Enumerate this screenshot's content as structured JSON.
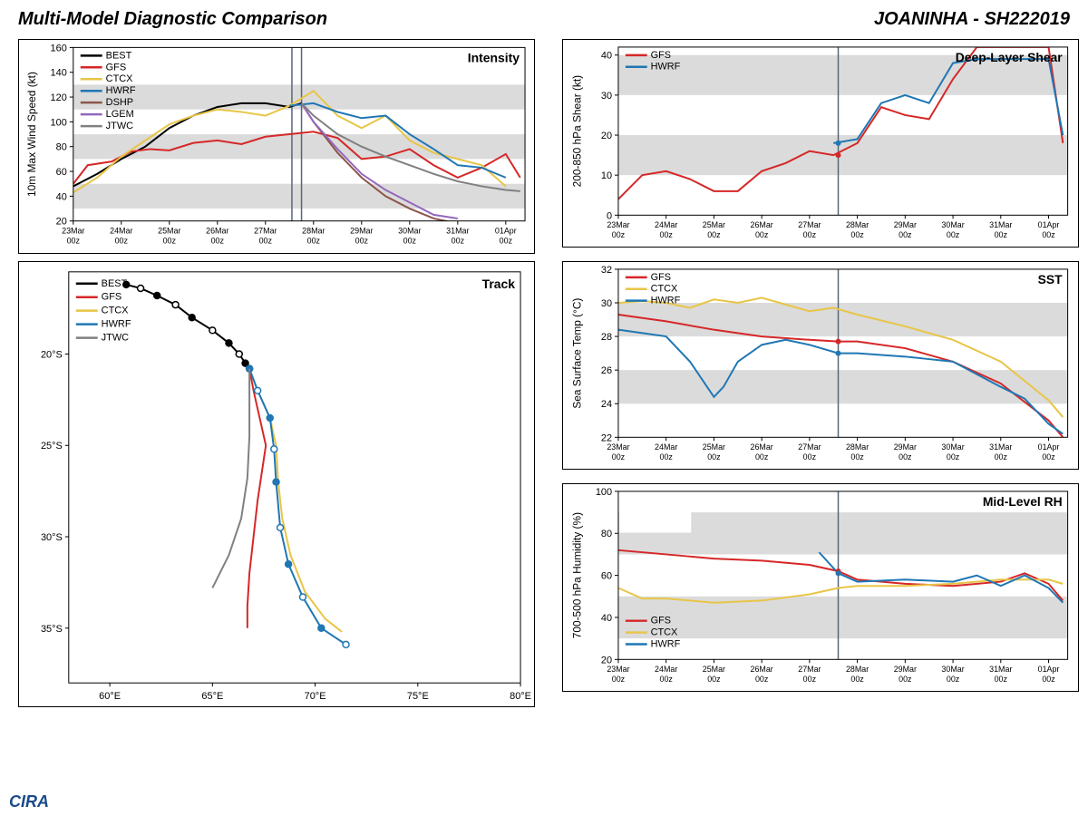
{
  "header": {
    "title_left": "Multi-Model Diagnostic Comparison",
    "title_right": "JOANINHA - SH222019"
  },
  "colors": {
    "BEST": "#000000",
    "GFS": "#d62728",
    "CTCX": "#e8c547",
    "HWRF": "#1f77b4",
    "DSHP": "#8c564b",
    "LGEM": "#9467bd",
    "JTWC": "#808080",
    "band": "#cccccc",
    "vline": "#556677"
  },
  "xaxis_dates": [
    "23Mar\n00z",
    "24Mar\n00z",
    "25Mar\n00z",
    "26Mar\n00z",
    "27Mar\n00z",
    "28Mar\n00z",
    "29Mar\n00z",
    "30Mar\n00z",
    "31Mar\n00z",
    "01Apr\n00z"
  ],
  "intensity": {
    "title": "Intensity",
    "ylabel": "10m Max Wind Speed (kt)",
    "ylim": [
      20,
      160
    ],
    "ytick_step": 20,
    "bands": [
      [
        30,
        50
      ],
      [
        70,
        90
      ],
      [
        110,
        130
      ]
    ],
    "vlines_x": [
      4.55,
      4.75
    ],
    "legend": [
      "BEST",
      "GFS",
      "CTCX",
      "HWRF",
      "DSHP",
      "LGEM",
      "JTWC"
    ],
    "series": {
      "BEST": {
        "x": [
          0,
          0.5,
          1,
          1.5,
          2,
          2.5,
          3,
          3.5,
          4,
          4.5,
          4.75
        ],
        "y": [
          48,
          58,
          70,
          80,
          95,
          105,
          112,
          115,
          115,
          112,
          115
        ]
      },
      "GFS": {
        "x": [
          0,
          0.3,
          0.8,
          1.2,
          1.6,
          2,
          2.5,
          3,
          3.5,
          4,
          4.5,
          5,
          5.5,
          6,
          6.5,
          7,
          7.5,
          8,
          8.5,
          9,
          9.3
        ],
        "y": [
          50,
          65,
          68,
          76,
          78,
          77,
          83,
          85,
          82,
          88,
          90,
          92,
          87,
          70,
          72,
          78,
          65,
          55,
          63,
          74,
          55
        ]
      },
      "CTCX": {
        "x": [
          0,
          0.5,
          1,
          1.5,
          2,
          2.5,
          3,
          3.5,
          4,
          4.5,
          5,
          5.5,
          6,
          6.5,
          7,
          7.5,
          8,
          8.5,
          9
        ],
        "y": [
          43,
          55,
          72,
          85,
          98,
          105,
          110,
          108,
          105,
          113,
          125,
          105,
          95,
          105,
          85,
          75,
          70,
          65,
          48
        ]
      },
      "HWRF": {
        "x": [
          4.5,
          5,
          5.5,
          6,
          6.5,
          7,
          7.5,
          8,
          8.5,
          9
        ],
        "y": [
          113,
          115,
          108,
          103,
          105,
          90,
          78,
          65,
          63,
          55
        ]
      },
      "DSHP": {
        "x": [
          4.75,
          5,
          5.5,
          6,
          6.5,
          7,
          7.5,
          8
        ],
        "y": [
          115,
          100,
          75,
          55,
          40,
          30,
          22,
          18
        ]
      },
      "LGEM": {
        "x": [
          4.75,
          5,
          5.5,
          6,
          6.5,
          7,
          7.5,
          8
        ],
        "y": [
          115,
          100,
          78,
          58,
          45,
          35,
          25,
          22
        ]
      },
      "JTWC": {
        "x": [
          4.75,
          5,
          5.5,
          6,
          6.5,
          7,
          7.5,
          8,
          8.5,
          9,
          9.3
        ],
        "y": [
          115,
          105,
          90,
          80,
          72,
          65,
          58,
          52,
          48,
          45,
          44
        ]
      }
    }
  },
  "track": {
    "title": "Track",
    "xlabel": "",
    "xlim": [
      58,
      80
    ],
    "ylim": [
      -38,
      -15.5
    ],
    "xticks": [
      60,
      65,
      70,
      75,
      80
    ],
    "yticks": [
      -35,
      -30,
      -25,
      -20
    ],
    "xtick_labels": [
      "60°E",
      "65°E",
      "70°E",
      "75°E",
      "80°E"
    ],
    "ytick_labels": [
      "35°S",
      "30°S",
      "25°S",
      "20°S"
    ],
    "legend": [
      "BEST",
      "GFS",
      "CTCX",
      "HWRF",
      "JTWC"
    ],
    "series": {
      "BEST": {
        "pts": [
          [
            60.8,
            -16.2
          ],
          [
            61.5,
            -16.4
          ],
          [
            62.3,
            -16.8
          ],
          [
            63.2,
            -17.3
          ],
          [
            64,
            -18
          ],
          [
            65,
            -18.7
          ],
          [
            65.8,
            -19.4
          ],
          [
            66.3,
            -20
          ],
          [
            66.6,
            -20.5
          ],
          [
            66.8,
            -20.8
          ]
        ],
        "markers": true,
        "alt": true
      },
      "GFS": {
        "pts": [
          [
            66.8,
            -20.8
          ],
          [
            67,
            -22
          ],
          [
            67.3,
            -23.5
          ],
          [
            67.6,
            -25
          ],
          [
            67.4,
            -26.5
          ],
          [
            67.2,
            -28
          ],
          [
            67,
            -30
          ],
          [
            66.8,
            -32
          ],
          [
            66.7,
            -33.8
          ],
          [
            66.7,
            -35
          ]
        ]
      },
      "CTCX": {
        "pts": [
          [
            66.8,
            -20.8
          ],
          [
            67.2,
            -22
          ],
          [
            67.8,
            -23.5
          ],
          [
            68.1,
            -25
          ],
          [
            68.2,
            -27
          ],
          [
            68.4,
            -29
          ],
          [
            68.8,
            -31
          ],
          [
            69.5,
            -33
          ],
          [
            70.5,
            -34.5
          ],
          [
            71.3,
            -35.2
          ]
        ]
      },
      "HWRF": {
        "pts": [
          [
            66.8,
            -20.8
          ],
          [
            67.2,
            -22
          ],
          [
            67.8,
            -23.5
          ],
          [
            68,
            -25.2
          ],
          [
            68.1,
            -27
          ],
          [
            68.3,
            -29.5
          ],
          [
            68.7,
            -31.5
          ],
          [
            69.4,
            -33.3
          ],
          [
            70.3,
            -35
          ],
          [
            71.5,
            -35.9
          ]
        ],
        "markers": true,
        "alt": true
      },
      "JTWC": {
        "pts": [
          [
            66.8,
            -20.8
          ],
          [
            66.8,
            -22.5
          ],
          [
            66.8,
            -24.5
          ],
          [
            66.7,
            -26.8
          ],
          [
            66.4,
            -29
          ],
          [
            65.8,
            -31
          ],
          [
            65,
            -32.8
          ]
        ]
      }
    }
  },
  "shear": {
    "title": "Deep-Layer Shear",
    "ylabel": "200-850 hPa Shear (kt)",
    "ylim": [
      0,
      42
    ],
    "yticks": [
      0,
      10,
      20,
      30,
      40
    ],
    "bands": [
      [
        10,
        20
      ],
      [
        30,
        40
      ]
    ],
    "vline_x": 4.6,
    "legend": [
      "GFS",
      "HWRF"
    ],
    "series": {
      "GFS": {
        "x": [
          0,
          0.5,
          1,
          1.5,
          2,
          2.5,
          3,
          3.5,
          4,
          4.5,
          5,
          5.5,
          6,
          6.5,
          7,
          7.5,
          9,
          9.3
        ],
        "y": [
          4,
          10,
          11,
          9,
          6,
          6,
          11,
          13,
          16,
          15,
          18,
          27,
          25,
          24,
          34,
          42,
          42,
          18
        ]
      },
      "HWRF": {
        "x": [
          4.5,
          5,
          5.5,
          6,
          6.5,
          7,
          7.5,
          9,
          9.3
        ],
        "y": [
          18,
          19,
          28,
          30,
          28,
          38,
          39,
          39,
          20
        ]
      }
    }
  },
  "sst": {
    "title": "SST",
    "ylabel": "Sea Surface Temp (°C)",
    "ylim": [
      22,
      32
    ],
    "yticks": [
      22,
      24,
      26,
      28,
      30,
      32
    ],
    "bands": [
      [
        24,
        26
      ],
      [
        28,
        30
      ]
    ],
    "vline_x": 4.6,
    "legend": [
      "GFS",
      "CTCX",
      "HWRF"
    ],
    "series": {
      "GFS": {
        "x": [
          0,
          1,
          2,
          3,
          4,
          4.6,
          5,
          6,
          7,
          8,
          9,
          9.3
        ],
        "y": [
          29.3,
          28.9,
          28.4,
          28,
          27.8,
          27.7,
          27.7,
          27.3,
          26.5,
          25.2,
          23,
          22
        ]
      },
      "CTCX": {
        "x": [
          0,
          0.5,
          1,
          1.5,
          2,
          2.5,
          3,
          3.5,
          4,
          4.5,
          5,
          6,
          7,
          8,
          9,
          9.3
        ],
        "y": [
          30,
          30.1,
          30,
          29.7,
          30.2,
          30,
          30.3,
          29.9,
          29.5,
          29.7,
          29.3,
          28.6,
          27.8,
          26.5,
          24.2,
          23.2
        ]
      },
      "HWRF": {
        "x": [
          0,
          1,
          1.5,
          2,
          2.2,
          2.5,
          3,
          3.5,
          4,
          4.6,
          5,
          6,
          7,
          8,
          8.5,
          9,
          9.3
        ],
        "y": [
          28.4,
          28,
          26.5,
          24.4,
          25,
          26.5,
          27.5,
          27.8,
          27.5,
          27,
          27,
          26.8,
          26.5,
          25,
          24.3,
          22.8,
          22.2
        ]
      }
    }
  },
  "rh": {
    "title": "Mid-Level RH",
    "ylabel": "700-500 hPa Humidity (%)",
    "ylim": [
      20,
      100
    ],
    "yticks": [
      20,
      40,
      60,
      80,
      100
    ],
    "bands": [
      [
        30,
        50
      ],
      [
        70,
        90
      ]
    ],
    "vline_x": 4.6,
    "legend": [
      "GFS",
      "CTCX",
      "HWRF"
    ],
    "series": {
      "GFS": {
        "x": [
          0,
          1,
          2,
          3,
          4,
          4.6,
          5,
          6,
          7,
          8,
          8.5,
          9,
          9.3
        ],
        "y": [
          72,
          70,
          68,
          67,
          65,
          62,
          58,
          56,
          55,
          57,
          61,
          56,
          48
        ]
      },
      "CTCX": {
        "x": [
          0,
          0.5,
          1,
          1.5,
          2,
          3,
          4,
          4.6,
          5,
          6,
          7,
          8,
          9,
          9.3
        ],
        "y": [
          54,
          49,
          49,
          48,
          47,
          48,
          51,
          54,
          55,
          55,
          56,
          58,
          58,
          56
        ]
      },
      "HWRF": {
        "x": [
          4.2,
          4.6,
          5,
          6,
          7,
          7.5,
          8,
          8.5,
          9,
          9.3
        ],
        "y": [
          71,
          61,
          57,
          58,
          57,
          60,
          55,
          60,
          54,
          47
        ]
      }
    }
  }
}
